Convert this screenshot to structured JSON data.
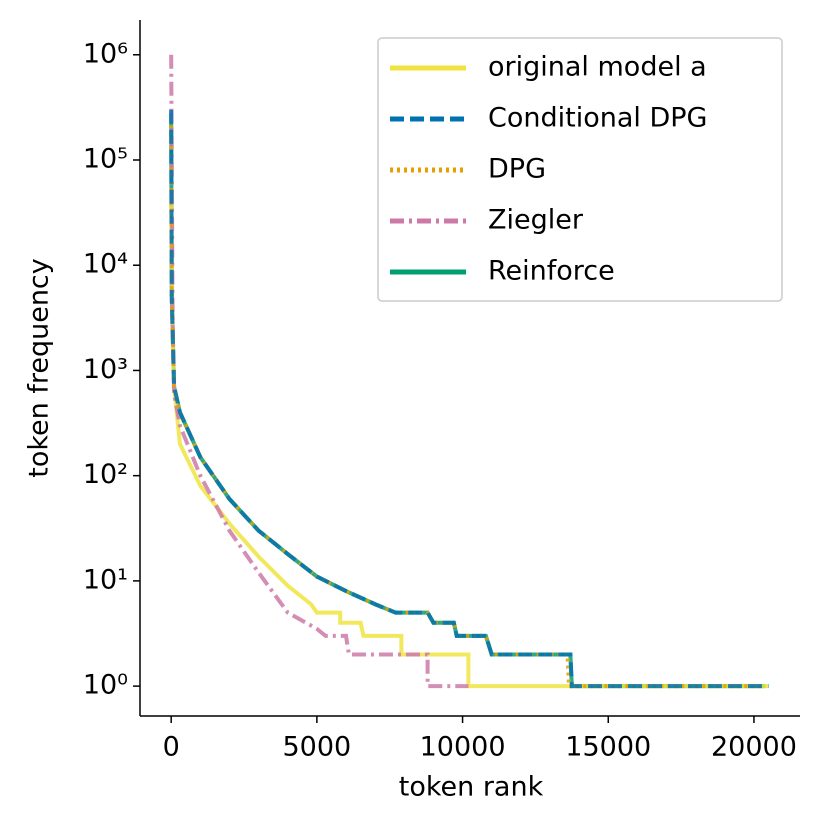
{
  "chart_data": {
    "type": "line",
    "xlabel": "token rank",
    "ylabel": "token frequency",
    "xlim": [
      -1070,
      21580
    ],
    "xticks": [
      0,
      5000,
      10000,
      15000,
      20000
    ],
    "ylim": [
      0.52,
      2140000
    ],
    "log_y": true,
    "yticks": [
      {
        "value": 1,
        "label": "10⁰"
      },
      {
        "value": 10,
        "label": "10¹"
      },
      {
        "value": 100,
        "label": "10²"
      },
      {
        "value": 1000,
        "label": "10³"
      },
      {
        "value": 10000,
        "label": "10⁴"
      },
      {
        "value": 100000,
        "label": "10⁵"
      },
      {
        "value": 1000000,
        "label": "10⁶"
      }
    ],
    "legend": "upper right",
    "series": [
      {
        "name": "original model a",
        "color": "#f0e442",
        "linestyle": "solid",
        "x": [
          0,
          50,
          100,
          300,
          1000,
          2000,
          3000,
          4000,
          4800,
          5000,
          5800,
          5800,
          6500,
          6600,
          7900,
          7900,
          10200,
          10200,
          20500
        ],
        "values": [
          40000,
          2000,
          700,
          200,
          80,
          35,
          17,
          9,
          6,
          5,
          5,
          4,
          4,
          3,
          3,
          2,
          2,
          1,
          1
        ]
      },
      {
        "name": "Conditional DPG",
        "color": "#0072b2",
        "linestyle": "dashed",
        "x": [
          0,
          20,
          100,
          300,
          1000,
          2000,
          3000,
          4000,
          5000,
          6000,
          7000,
          7700,
          8800,
          9000,
          9700,
          9800,
          10800,
          11000,
          13700,
          13750,
          20500
        ],
        "values": [
          300000,
          5000,
          700,
          400,
          150,
          60,
          30,
          18,
          11,
          8,
          6,
          5,
          5,
          4,
          4,
          3,
          3,
          2,
          2,
          1,
          1
        ]
      },
      {
        "name": "DPG",
        "color": "#e69f00",
        "linestyle": "dotted",
        "x": [
          0,
          20,
          100,
          300,
          1000,
          2000,
          3000,
          4000,
          5000,
          6000,
          7000,
          7700,
          8800,
          9000,
          9700,
          9800,
          10800,
          11000,
          13600,
          13650,
          20300
        ],
        "values": [
          250000,
          5000,
          700,
          400,
          150,
          60,
          30,
          18,
          11,
          8,
          6,
          5,
          5,
          4,
          4,
          3,
          3,
          2,
          2,
          1,
          1
        ]
      },
      {
        "name": "Ziegler",
        "color": "#cc79a7",
        "linestyle": "dashdot",
        "x": [
          0,
          50,
          100,
          300,
          1000,
          2000,
          3000,
          4000,
          5000,
          5300,
          6000,
          6100,
          8800,
          8800,
          10200
        ],
        "values": [
          1000000,
          3000,
          600,
          300,
          100,
          30,
          12,
          5,
          3.5,
          3,
          3,
          2,
          2,
          1,
          1
        ]
      },
      {
        "name": "Reinforce",
        "color": "#009e73",
        "linestyle": "solid",
        "x": [
          0,
          20,
          100,
          300,
          1000,
          2000,
          3000,
          4000,
          5000,
          6000,
          7000,
          7700,
          8800,
          9000,
          9700,
          9800,
          10800,
          11000,
          13700,
          13750,
          20400
        ],
        "values": [
          280000,
          5000,
          700,
          400,
          150,
          60,
          30,
          18,
          11,
          8,
          6,
          5,
          5,
          4,
          4,
          3,
          3,
          2,
          2,
          1,
          1
        ]
      }
    ]
  }
}
